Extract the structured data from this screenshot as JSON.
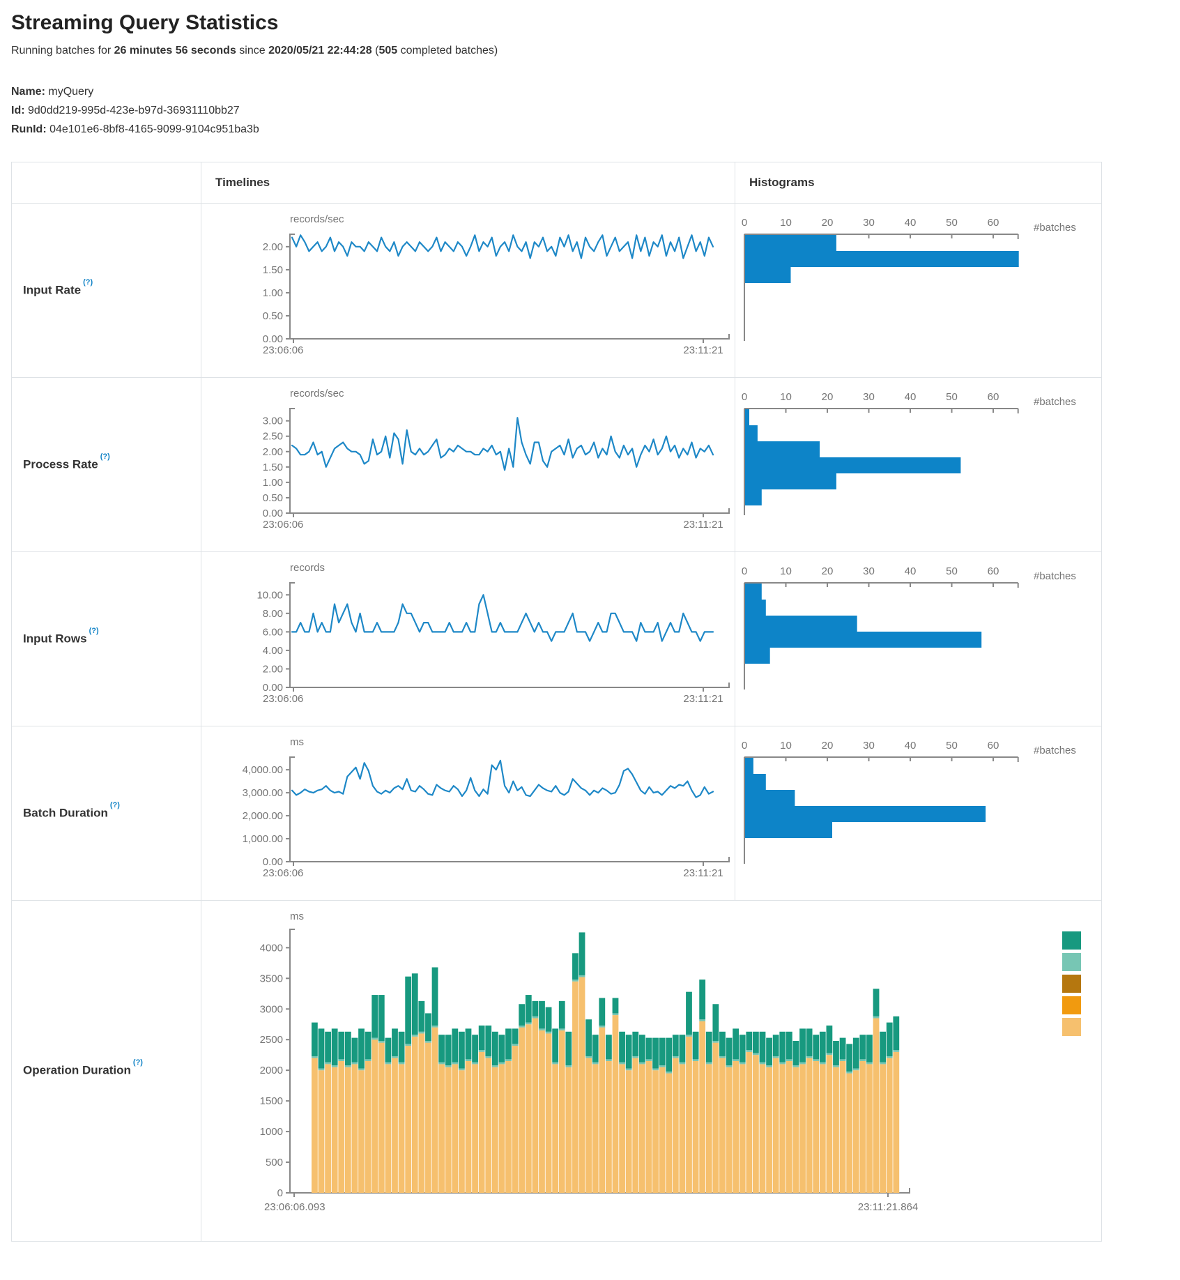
{
  "colors": {
    "line": "#1e88c7",
    "hist": "#0d84c8",
    "axis": "#888888",
    "tick_text": "#757575",
    "help_blue": "#0f82c6",
    "stack_bottom": "#f6c06e",
    "stack_middle": "#77c6b4",
    "stack_top": "#17997f"
  },
  "header": {
    "title": "Streaming Query Statistics",
    "running_prefix": "Running batches for",
    "duration": "26 minutes 56 seconds",
    "since_word": "since",
    "start_time": "2020/05/21 22:44:28",
    "open_paren": "(",
    "completed_count": "505",
    "completed_suffix": "completed batches)"
  },
  "meta": {
    "name_label": "Name:",
    "name_value": "myQuery",
    "id_label": "Id:",
    "id_value": "9d0dd219-995d-423e-b97d-36931110bb27",
    "runid_label": "RunId:",
    "runid_value": "04e101e6-8bf8-4165-9099-9104c951ba3b"
  },
  "table": {
    "timelines_header": "Timelines",
    "histograms_header": "Histograms",
    "batches_label": "#batches",
    "rows": [
      {
        "label": "Input Rate",
        "help": "(?)"
      },
      {
        "label": "Process Rate",
        "help": "(?)"
      },
      {
        "label": "Input Rows",
        "help": "(?)"
      },
      {
        "label": "Batch Duration",
        "help": "(?)"
      },
      {
        "label": "Operation Duration",
        "help": "(?)"
      }
    ]
  },
  "chart_data": [
    {
      "row": "Input Rate",
      "timeline": {
        "type": "line",
        "unit": "records/sec",
        "x_start": "23:06:06",
        "x_end": "23:11:21",
        "ymax": 2.27,
        "yticks": [
          2,
          1.5,
          1,
          0.5,
          0
        ],
        "ytick_labels": [
          "2.00",
          "1.50",
          "1.00",
          "0.50",
          "0.00"
        ],
        "values": [
          2.2,
          2.0,
          2.25,
          2.1,
          1.9,
          2.0,
          2.1,
          1.9,
          2.0,
          2.2,
          1.9,
          2.1,
          2.0,
          1.8,
          2.1,
          2.0,
          2.0,
          1.9,
          2.1,
          2.0,
          1.9,
          2.2,
          2.0,
          1.9,
          2.1,
          1.8,
          2.0,
          2.1,
          2.0,
          1.9,
          2.1,
          2.0,
          1.9,
          2.0,
          2.2,
          1.9,
          2.1,
          2.0,
          1.9,
          2.1,
          2.0,
          1.8,
          2.0,
          2.25,
          1.9,
          2.1,
          2.0,
          2.2,
          1.8,
          2.0,
          2.1,
          1.9,
          2.25,
          2.0,
          1.9,
          2.1,
          1.75,
          2.1,
          2.0,
          2.2,
          1.9,
          2.0,
          1.8,
          2.2,
          2.0,
          2.25,
          1.9,
          2.1,
          1.75,
          2.2,
          2.0,
          1.9,
          2.1,
          2.25,
          1.8,
          2.0,
          2.2,
          1.9,
          2.0,
          2.1,
          1.75,
          2.25,
          1.9,
          2.2,
          1.8,
          2.1,
          2.0,
          2.25,
          1.8,
          2.1,
          1.9,
          2.2,
          1.75,
          2.0,
          2.25,
          1.9,
          2.1,
          1.8,
          2.2,
          2.0
        ]
      },
      "histogram": {
        "type": "bar",
        "orientation": "horizontal",
        "xmax": 66,
        "xticks": [
          0,
          10,
          20,
          30,
          40,
          50,
          60
        ],
        "xtick_labels": [
          "0",
          "10",
          "20",
          "30",
          "40",
          "50",
          "60"
        ],
        "values": [
          22,
          66,
          11
        ]
      }
    },
    {
      "row": "Process Rate",
      "timeline": {
        "type": "line",
        "unit": "records/sec",
        "x_start": "23:06:06",
        "x_end": "23:11:21",
        "ymax": 3.4,
        "yticks": [
          3,
          2.5,
          2,
          1.5,
          1,
          0.5,
          0
        ],
        "ytick_labels": [
          "3.00",
          "2.50",
          "2.00",
          "1.50",
          "1.00",
          "0.50",
          "0.00"
        ],
        "values": [
          2.2,
          2.1,
          1.9,
          1.9,
          2.0,
          2.3,
          1.9,
          2.0,
          1.5,
          1.8,
          2.1,
          2.2,
          2.3,
          2.1,
          2.0,
          2.0,
          1.9,
          1.6,
          1.7,
          2.4,
          1.9,
          2.0,
          2.5,
          1.8,
          2.6,
          2.4,
          1.6,
          2.7,
          2.0,
          1.9,
          2.1,
          1.9,
          2.0,
          2.2,
          2.4,
          1.8,
          1.9,
          2.1,
          2.0,
          2.2,
          2.1,
          2.0,
          2.0,
          1.9,
          1.9,
          2.1,
          2.0,
          2.2,
          1.9,
          2.0,
          1.4,
          2.1,
          1.5,
          3.1,
          2.3,
          1.9,
          1.6,
          2.3,
          2.3,
          1.7,
          1.5,
          2.0,
          2.1,
          2.2,
          1.9,
          2.4,
          1.8,
          2.1,
          2.2,
          1.9,
          2.0,
          2.3,
          1.8,
          2.1,
          1.9,
          2.5,
          2.0,
          1.8,
          2.2,
          1.9,
          2.1,
          1.5,
          1.9,
          2.2,
          2.0,
          2.4,
          1.9,
          2.1,
          2.5,
          2.0,
          2.2,
          1.8,
          2.1,
          1.9,
          2.3,
          1.8,
          2.1,
          2.0,
          2.2,
          1.9
        ]
      },
      "histogram": {
        "type": "bar",
        "orientation": "horizontal",
        "xmax": 66,
        "xticks": [
          0,
          10,
          20,
          30,
          40,
          50,
          60
        ],
        "xtick_labels": [
          "0",
          "10",
          "20",
          "30",
          "40",
          "50",
          "60"
        ],
        "values": [
          1,
          3,
          18,
          52,
          22,
          4
        ]
      }
    },
    {
      "row": "Input Rows",
      "timeline": {
        "type": "line",
        "unit": "records",
        "x_start": "23:06:06",
        "x_end": "23:11:21",
        "ymax": 11.3,
        "yticks": [
          10,
          8,
          6,
          4,
          2,
          0
        ],
        "ytick_labels": [
          "10.00",
          "8.00",
          "6.00",
          "4.00",
          "2.00",
          "0.00"
        ],
        "values": [
          6,
          6,
          7,
          6,
          6,
          8,
          6,
          7,
          6,
          6,
          9,
          7,
          8,
          9,
          7,
          6,
          8,
          6,
          6,
          6,
          7,
          6,
          6,
          6,
          6,
          7,
          9,
          8,
          8,
          7,
          6,
          7,
          7,
          6,
          6,
          6,
          6,
          7,
          6,
          6,
          6,
          7,
          6,
          6,
          9,
          10,
          8,
          6,
          6,
          7,
          6,
          6,
          6,
          6,
          7,
          8,
          7,
          6,
          7,
          6,
          6,
          5,
          6,
          6,
          6,
          7,
          8,
          6,
          6,
          6,
          5,
          6,
          7,
          6,
          6,
          8,
          8,
          7,
          6,
          6,
          6,
          5,
          7,
          6,
          6,
          6,
          7,
          5,
          6,
          7,
          6,
          6,
          8,
          7,
          6,
          6,
          5,
          6,
          6,
          6
        ]
      },
      "histogram": {
        "type": "bar",
        "orientation": "horizontal",
        "xmax": 66,
        "xticks": [
          0,
          10,
          20,
          30,
          40,
          50,
          60
        ],
        "xtick_labels": [
          "0",
          "10",
          "20",
          "30",
          "40",
          "50",
          "60"
        ],
        "values": [
          4,
          5,
          27,
          57,
          6
        ]
      }
    },
    {
      "row": "Batch Duration",
      "timeline": {
        "type": "line",
        "unit": "ms",
        "x_start": "23:06:06",
        "x_end": "23:11:21",
        "ymax": 4550,
        "yticks": [
          4000,
          3000,
          2000,
          1000,
          0
        ],
        "ytick_labels": [
          "4,000.00",
          "3,000.00",
          "2,000.00",
          "1,000.00",
          "0.00"
        ],
        "values": [
          3100,
          2900,
          3000,
          3150,
          3050,
          3000,
          3100,
          3150,
          3300,
          3100,
          3000,
          3050,
          2950,
          3700,
          3900,
          4100,
          3600,
          4300,
          3950,
          3300,
          3050,
          2950,
          3100,
          3000,
          3200,
          3300,
          3150,
          3600,
          3100,
          3050,
          3300,
          3150,
          2950,
          2900,
          3350,
          3200,
          3100,
          3050,
          3300,
          3150,
          2850,
          3100,
          3650,
          3100,
          2850,
          3150,
          2950,
          4200,
          4000,
          4400,
          3300,
          3000,
          3500,
          3100,
          3250,
          2900,
          2850,
          3100,
          3350,
          3200,
          3100,
          3050,
          3300,
          3000,
          2900,
          3050,
          3600,
          3400,
          3200,
          3100,
          2900,
          3100,
          3000,
          3200,
          3100,
          2950,
          3000,
          3350,
          3950,
          4050,
          3800,
          3450,
          3100,
          2950,
          3250,
          3000,
          3050,
          2900,
          3100,
          3300,
          3200,
          3350,
          3300,
          3500,
          3100,
          2800,
          2900,
          3250,
          2950,
          3050
        ]
      },
      "histogram": {
        "type": "bar",
        "orientation": "horizontal",
        "xmax": 66,
        "xticks": [
          0,
          10,
          20,
          30,
          40,
          50,
          60
        ],
        "xtick_labels": [
          "0",
          "10",
          "20",
          "30",
          "40",
          "50",
          "60"
        ],
        "values": [
          2,
          5,
          12,
          58,
          21
        ]
      }
    },
    {
      "row": "Operation Duration",
      "timeline": {
        "type": "stacked-bar",
        "unit": "ms",
        "x_start": "23:06:06.093",
        "x_end": "23:11:21.864",
        "ymax": 4300,
        "yticks": [
          4000,
          3500,
          3000,
          2500,
          2000,
          1500,
          1000,
          500,
          0
        ],
        "ytick_labels": [
          "4000",
          "3500",
          "3000",
          "2500",
          "2000",
          "1500",
          "1000",
          "500",
          "0"
        ],
        "series": [
          {
            "name": "bottom",
            "color": "#f6c06e",
            "values": [
              2200,
              2000,
              2100,
              2050,
              2150,
              2050,
              2100,
              2000,
              2150,
              2500,
              2450,
              2100,
              2200,
              2100,
              2400,
              2550,
              2600,
              2450,
              2700,
              2100,
              2050,
              2100,
              2000,
              2150,
              2100,
              2300,
              2200,
              2050,
              2100,
              2150,
              2400,
              2700,
              2750,
              2850,
              2650,
              2600,
              2100,
              2650,
              2050,
              3450,
              3520,
              2200,
              2100,
              2700,
              2150,
              2900,
              2100,
              2000,
              2200,
              2100,
              2150,
              2000,
              2050,
              1950,
              2200,
              2100,
              2550,
              2150,
              2800,
              2100,
              2450,
              2200,
              2050,
              2150,
              2100,
              2300,
              2250,
              2100,
              2050,
              2200,
              2100,
              2150,
              2050,
              2100,
              2200,
              2150,
              2100,
              2250,
              2050,
              2150,
              1950,
              2000,
              2150,
              2100,
              2850,
              2100,
              2200,
              2300
            ]
          },
          {
            "name": "middle",
            "color": "#77c6b4",
            "constant": 30
          },
          {
            "name": "top",
            "color": "#17997f",
            "values": [
              550,
              650,
              500,
              600,
              450,
              550,
              400,
              650,
              450,
              700,
              750,
              400,
              450,
              500,
              1100,
              1000,
              500,
              450,
              950,
              450,
              500,
              550,
              600,
              500,
              450,
              400,
              500,
              550,
              450,
              500,
              250,
              350,
              450,
              250,
              450,
              400,
              550,
              450,
              550,
              430,
              700,
              600,
              450,
              450,
              400,
              250,
              500,
              550,
              400,
              450,
              350,
              500,
              450,
              550,
              350,
              450,
              700,
              450,
              650,
              500,
              600,
              400,
              450,
              500,
              450,
              300,
              350,
              500,
              450,
              350,
              500,
              450,
              400,
              550,
              450,
              400,
              500,
              450,
              400,
              350,
              450,
              500,
              400,
              450,
              450,
              500,
              550,
              550
            ]
          }
        ]
      },
      "legend": [
        "#17997f",
        "#77c6b4",
        "#b5770f",
        "#f19a0f",
        "#f6c06e"
      ]
    }
  ]
}
